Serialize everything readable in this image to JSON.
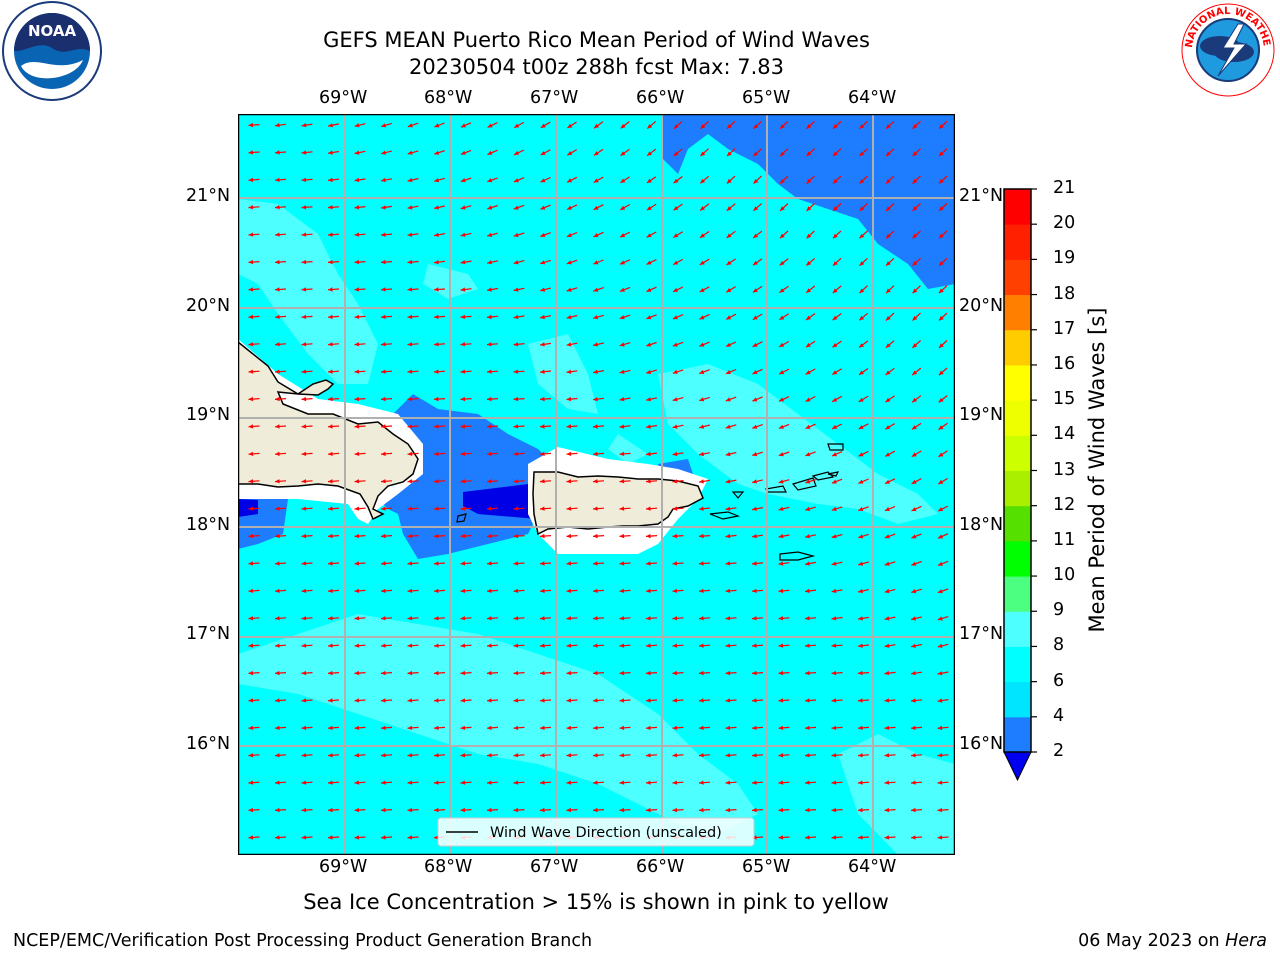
{
  "title": {
    "line1": "GEFS MEAN Puerto Rico Mean Period of Wind Waves",
    "line2": "20230504 t00z 288h fcst   Max: 7.83"
  },
  "map": {
    "lon_labels": [
      "69°W",
      "68°W",
      "67°W",
      "66°W",
      "65°W",
      "64°W"
    ],
    "lat_labels": [
      "21°N",
      "20°N",
      "19°N",
      "18°N",
      "17°N",
      "16°N"
    ],
    "legend_label": "Wind Wave Direction (unscaled)",
    "colors": {
      "ocean_4_6": "#00ffff",
      "ocean_6_8": "#4dffff",
      "ocean_2_4": "#1e7dff",
      "ocean_lt2": "#0000e6",
      "land": "#efedd9",
      "arrow": "#ff0000",
      "grid": "#b0b0b0"
    }
  },
  "colorbar": {
    "label": "Mean Period of Wind Waves [s]",
    "ticks": [
      "2",
      "4",
      "6",
      "8",
      "9",
      "10",
      "11",
      "12",
      "13",
      "14",
      "15",
      "16",
      "17",
      "18",
      "19",
      "20",
      "21"
    ],
    "colors": [
      "#1e7dff",
      "#00e5ff",
      "#00ffff",
      "#4dffff",
      "#a0ffff",
      "#4dff80",
      "#00ff00",
      "#55e000",
      "#aaee00",
      "#ccff00",
      "#eeff00",
      "#ffff00",
      "#ffcc00",
      "#ffaa00",
      "#ff8000",
      "#ff4000",
      "#ff2000",
      "#ff0000"
    ],
    "under_color": "#0000ee"
  },
  "note": "Sea Ice Concentration > 15% is shown in pink to yellow",
  "footer": {
    "left": "NCEP/EMC/Verification Post Processing Product Generation Branch",
    "right_prefix": "06 May 2023 on ",
    "right_machine": "Hera"
  },
  "logos": {
    "noaa_text": "NOAA",
    "nws_ring_text": "NATIONAL WEATHER SERVICE"
  }
}
